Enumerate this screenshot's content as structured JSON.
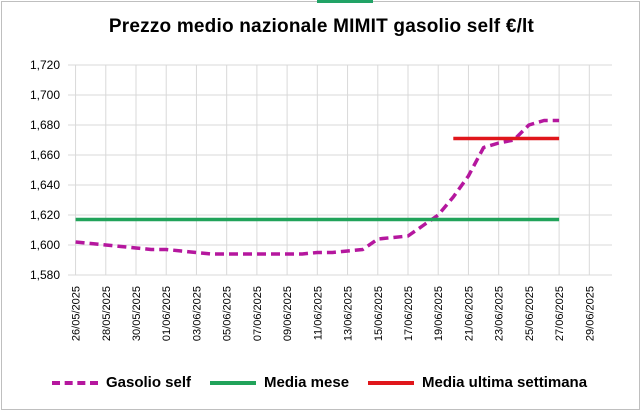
{
  "header": {
    "title": "Prezzo medio nazionale MIMIT gasolio self €/lt"
  },
  "legend": {
    "items": [
      {
        "label": "Gasolio self",
        "color": "#b5179e",
        "style": "dashed"
      },
      {
        "label": "Media mese",
        "color": "#21a35a",
        "style": "solid"
      },
      {
        "label": "Media ultima settimana",
        "color": "#e0161b",
        "style": "solid"
      }
    ]
  },
  "chart_data": {
    "type": "line",
    "title": "Prezzo medio nazionale MIMIT gasolio self €/lt",
    "xlabel": "",
    "ylabel": "",
    "ylim": [
      1.58,
      1.72
    ],
    "yticks": [
      "1,580",
      "1,600",
      "1,620",
      "1,640",
      "1,660",
      "1,680",
      "1,700",
      "1,720"
    ],
    "x": [
      "26/05/2025",
      "27/05/2025",
      "28/05/2025",
      "29/05/2025",
      "30/05/2025",
      "31/05/2025",
      "01/06/2025",
      "02/06/2025",
      "03/06/2025",
      "04/06/2025",
      "05/06/2025",
      "06/06/2025",
      "07/06/2025",
      "08/06/2025",
      "09/06/2025",
      "10/06/2025",
      "11/06/2025",
      "12/06/2025",
      "13/06/2025",
      "14/06/2025",
      "15/06/2025",
      "16/06/2025",
      "17/06/2025",
      "18/06/2025",
      "19/06/2025",
      "20/06/2025",
      "21/06/2025",
      "22/06/2025",
      "23/06/2025",
      "24/06/2025",
      "25/06/2025",
      "26/06/2025",
      "27/06/2025",
      "28/06/2025",
      "29/06/2025",
      "30/06/2025"
    ],
    "xtick_labels": [
      "26/05/2025",
      "28/05/2025",
      "30/05/2025",
      "01/06/2025",
      "03/06/2025",
      "05/06/2025",
      "07/06/2025",
      "09/06/2025",
      "11/06/2025",
      "13/06/2025",
      "15/06/2025",
      "17/06/2025",
      "19/06/2025",
      "21/06/2025",
      "23/06/2025",
      "25/06/2025",
      "27/06/2025",
      "29/06/2025"
    ],
    "grid": true,
    "legend_position": "bottom",
    "series": [
      {
        "name": "Gasolio self",
        "color": "#b5179e",
        "style": "dashed",
        "values": [
          1.602,
          1.601,
          1.6,
          1.599,
          1.598,
          1.597,
          1.597,
          1.596,
          1.595,
          1.594,
          1.594,
          1.594,
          1.594,
          1.594,
          1.594,
          1.594,
          1.595,
          1.595,
          1.596,
          1.597,
          1.604,
          1.605,
          1.606,
          1.613,
          1.62,
          1.632,
          1.646,
          1.665,
          1.668,
          1.67,
          1.68,
          1.683,
          1.683,
          null,
          null,
          null
        ]
      },
      {
        "name": "Media mese",
        "color": "#21a35a",
        "style": "solid",
        "values": [
          1.617,
          1.617,
          1.617,
          1.617,
          1.617,
          1.617,
          1.617,
          1.617,
          1.617,
          1.617,
          1.617,
          1.617,
          1.617,
          1.617,
          1.617,
          1.617,
          1.617,
          1.617,
          1.617,
          1.617,
          1.617,
          1.617,
          1.617,
          1.617,
          1.617,
          1.617,
          1.617,
          1.617,
          1.617,
          1.617,
          1.617,
          1.617,
          1.617,
          null,
          null,
          null
        ]
      },
      {
        "name": "Media ultima settimana",
        "color": "#e0161b",
        "style": "solid",
        "values": [
          null,
          null,
          null,
          null,
          null,
          null,
          null,
          null,
          null,
          null,
          null,
          null,
          null,
          null,
          null,
          null,
          null,
          null,
          null,
          null,
          null,
          null,
          null,
          null,
          null,
          1.671,
          1.671,
          1.671,
          1.671,
          1.671,
          1.671,
          1.671,
          1.671,
          null,
          null,
          null
        ]
      }
    ]
  }
}
